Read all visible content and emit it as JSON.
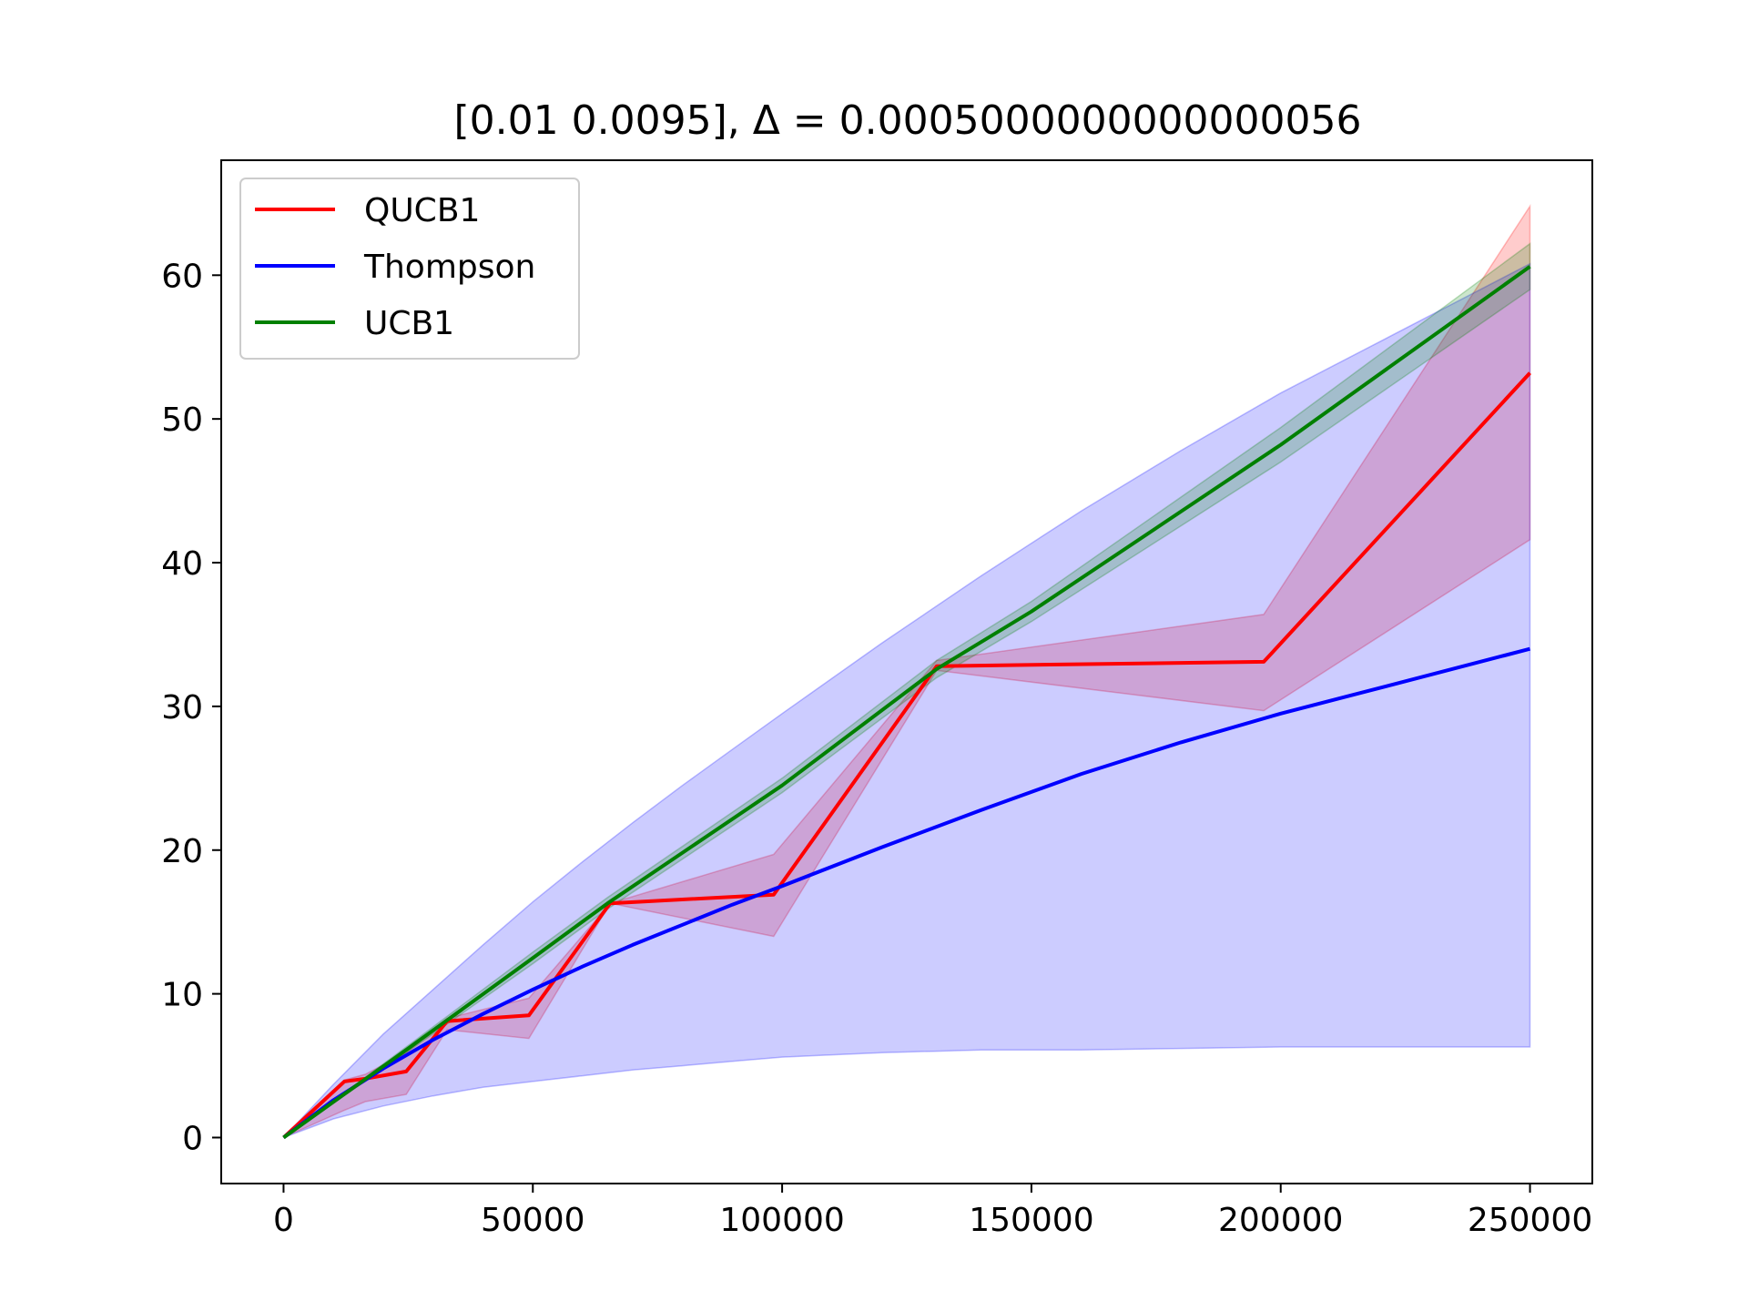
{
  "chart_data": {
    "type": "line",
    "title": "[0.01   0.0095], Δ = 0.0005000000000000056",
    "xlabel": "",
    "ylabel": "",
    "xlim": [
      -12500,
      262500
    ],
    "ylim": [
      -3.2,
      68
    ],
    "xticks": [
      0,
      50000,
      100000,
      150000,
      200000,
      250000
    ],
    "xtick_labels": [
      "0",
      "50000",
      "100000",
      "150000",
      "200000",
      "250000"
    ],
    "yticks": [
      0,
      10,
      20,
      30,
      40,
      50,
      60
    ],
    "ytick_labels": [
      "0",
      "10",
      "20",
      "30",
      "40",
      "50",
      "60"
    ],
    "grid": false,
    "legend_position": "upper-left",
    "series": [
      {
        "name": "QUCB1",
        "color": "#ff0000",
        "x": [
          0,
          12200,
          16400,
          24600,
          32800,
          49200,
          65500,
          98300,
          131000,
          196600,
          250000
        ],
        "y": [
          0,
          3.9,
          4.1,
          4.6,
          8.1,
          8.5,
          16.3,
          16.9,
          32.8,
          33.1,
          53.2
        ],
        "band_lower": [
          0,
          1.9,
          2.5,
          3.0,
          7.5,
          6.9,
          16.3,
          14.0,
          32.5,
          29.7,
          41.6
        ],
        "band_upper": [
          0,
          4.0,
          4.4,
          5.9,
          8.3,
          9.7,
          16.3,
          19.7,
          33.2,
          36.4,
          64.8
        ]
      },
      {
        "name": "Thompson",
        "color": "#0000ff",
        "x": [
          0,
          10000,
          20000,
          30000,
          40000,
          50000,
          60000,
          70000,
          80000,
          90000,
          100000,
          120000,
          140000,
          160000,
          180000,
          200000,
          220000,
          250000
        ],
        "y": [
          0,
          2.6,
          4.8,
          6.8,
          8.6,
          10.3,
          11.9,
          13.4,
          14.8,
          16.2,
          17.5,
          20.2,
          22.8,
          25.3,
          27.5,
          29.5,
          31.3,
          34.0
        ],
        "band_lower": [
          0,
          1.3,
          2.2,
          2.9,
          3.5,
          3.9,
          4.3,
          4.7,
          5.0,
          5.3,
          5.6,
          5.9,
          6.1,
          6.1,
          6.2,
          6.3,
          6.3,
          6.3
        ],
        "band_upper": [
          0,
          3.7,
          7.2,
          10.3,
          13.4,
          16.4,
          19.2,
          21.9,
          24.5,
          27.0,
          29.5,
          34.4,
          39.1,
          43.6,
          47.8,
          51.8,
          55.4,
          60.8
        ]
      },
      {
        "name": "UCB1",
        "color": "#008000",
        "x": [
          0,
          25000,
          50000,
          65000,
          100000,
          131000,
          150000,
          200000,
          250000
        ],
        "y": [
          0,
          6.2,
          12.5,
          16.3,
          24.5,
          32.6,
          36.6,
          48.2,
          60.6
        ],
        "band_lower": [
          0,
          6.0,
          12.1,
          15.9,
          24.0,
          32.0,
          35.9,
          47.0,
          59.0
        ],
        "band_upper": [
          0,
          6.4,
          12.9,
          16.7,
          25.0,
          33.2,
          37.3,
          49.4,
          62.2
        ]
      }
    ]
  }
}
